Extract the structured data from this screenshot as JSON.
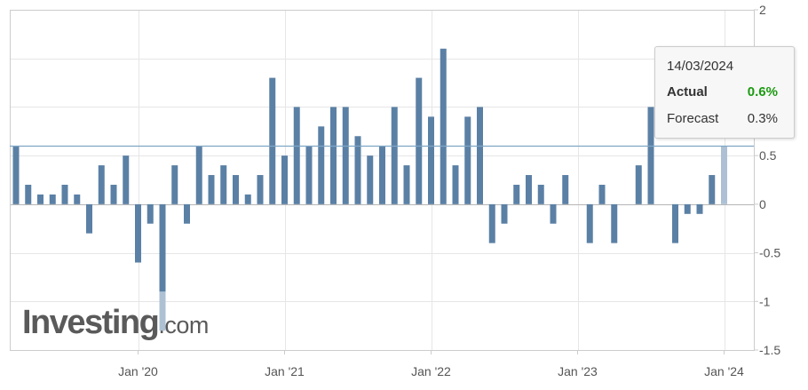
{
  "chart_data": {
    "type": "bar",
    "title": "",
    "xlabel": "",
    "ylabel": "",
    "ylim": [
      -1.5,
      2
    ],
    "yticks": [
      -1.5,
      -1,
      -0.5,
      0,
      0.5,
      1,
      1.5,
      2
    ],
    "ytick_labels": [
      "-1.5",
      "-1",
      "-0.5",
      "0",
      "0.5",
      "",
      "",
      "2"
    ],
    "xtick_labels": [
      "Jan '20",
      "Jan '21",
      "Jan '22",
      "Jan '23",
      "Jan '24"
    ],
    "reference_line": 0.6,
    "grid": true,
    "bar_color": "#5b80a5",
    "highlight_color": "#aec1d4",
    "categories": [
      "2019-03",
      "2019-04",
      "2019-05",
      "2019-06",
      "2019-07",
      "2019-08",
      "2019-09",
      "2019-10",
      "2019-11",
      "2019-12",
      "2020-01",
      "2020-02",
      "2020-03",
      "2020-04",
      "2020-05",
      "2020-06",
      "2020-07",
      "2020-08",
      "2020-09",
      "2020-10",
      "2020-11",
      "2020-12",
      "2021-01",
      "2021-02",
      "2021-03",
      "2021-04",
      "2021-05",
      "2021-06",
      "2021-07",
      "2021-08",
      "2021-09",
      "2021-10",
      "2021-11",
      "2021-12",
      "2022-01",
      "2022-02",
      "2022-03",
      "2022-04",
      "2022-05",
      "2022-06",
      "2022-07",
      "2022-08",
      "2022-09",
      "2022-10",
      "2022-11",
      "2022-12",
      "2023-01",
      "2023-02",
      "2023-03",
      "2023-04",
      "2023-05",
      "2023-06",
      "2023-07",
      "2023-08",
      "2023-09",
      "2023-10",
      "2023-11",
      "2023-12",
      "2024-01",
      "2024-02"
    ],
    "values": [
      0.6,
      0.2,
      0.1,
      0.1,
      0.2,
      0.1,
      -0.3,
      0.4,
      0.2,
      0.5,
      -0.6,
      -0.2,
      -1.3,
      0.4,
      -0.2,
      0.6,
      0.3,
      0.4,
      0.3,
      0.1,
      0.3,
      1.3,
      0.5,
      1.0,
      0.6,
      0.8,
      1.0,
      1.0,
      0.7,
      0.5,
      0.6,
      1.0,
      0.4,
      1.3,
      0.9,
      1.6,
      0.4,
      0.9,
      1.0,
      -0.4,
      -0.2,
      0.2,
      0.3,
      0.2,
      -0.2,
      0.3,
      0.0,
      -0.4,
      0.2,
      -0.4,
      0.0,
      0.4,
      1.0,
      0.0,
      -0.4,
      -0.1,
      -0.1,
      0.3,
      0.6,
      0.0
    ],
    "faded_below": -0.9,
    "tooltip_index": 58
  },
  "tooltip": {
    "date": "14/03/2024",
    "actual_label": "Actual",
    "actual_value": "0.6%",
    "forecast_label": "Forecast",
    "forecast_value": "0.3%"
  },
  "logo": {
    "main": "Investing",
    "suffix": ".com"
  },
  "colors": {
    "actual_green": "#1b9a11",
    "grid": "#e6e6e6",
    "reference_line": "#7fa6c6"
  }
}
